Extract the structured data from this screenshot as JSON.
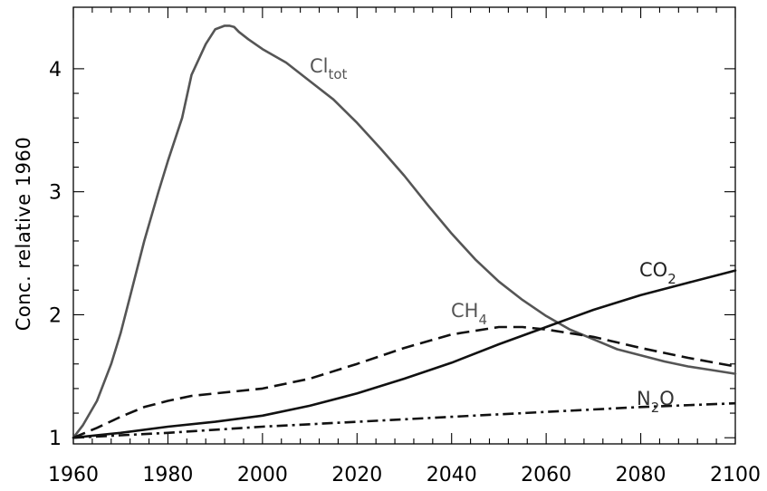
{
  "chart_data": {
    "type": "line",
    "title": "",
    "xlabel": "",
    "ylabel": "Conc. relative 1960",
    "xlim": [
      1960,
      2100
    ],
    "ylim": [
      0.95,
      4.5
    ],
    "xticks": [
      1960,
      1980,
      2000,
      2020,
      2040,
      2060,
      2080,
      2100
    ],
    "yticks": [
      1,
      2,
      3,
      4
    ],
    "grid": false,
    "legend": "none",
    "series": [
      {
        "name": "Cl",
        "name_sub": "tot",
        "color": "#555555",
        "dash": "solid",
        "x": [
          1960,
          1962,
          1965,
          1968,
          1970,
          1972,
          1975,
          1978,
          1980,
          1983,
          1985,
          1988,
          1990,
          1992,
          1993,
          1994,
          1995,
          1997,
          2000,
          2005,
          2010,
          2015,
          2020,
          2025,
          2030,
          2035,
          2040,
          2045,
          2050,
          2055,
          2060,
          2065,
          2070,
          2075,
          2080,
          2085,
          2090,
          2095,
          2100
        ],
        "y": [
          1.0,
          1.1,
          1.3,
          1.6,
          1.85,
          2.15,
          2.6,
          3.0,
          3.25,
          3.6,
          3.95,
          4.2,
          4.32,
          4.35,
          4.35,
          4.34,
          4.3,
          4.24,
          4.16,
          4.05,
          3.9,
          3.75,
          3.56,
          3.35,
          3.13,
          2.89,
          2.66,
          2.45,
          2.27,
          2.12,
          1.99,
          1.88,
          1.8,
          1.72,
          1.67,
          1.62,
          1.58,
          1.55,
          1.52
        ]
      },
      {
        "name": "CO",
        "name_sub": "2",
        "color": "#111111",
        "dash": "solid",
        "x": [
          1960,
          1970,
          1980,
          1990,
          2000,
          2010,
          2020,
          2030,
          2040,
          2050,
          2060,
          2070,
          2080,
          2090,
          2100
        ],
        "y": [
          1.0,
          1.04,
          1.09,
          1.13,
          1.18,
          1.26,
          1.36,
          1.48,
          1.61,
          1.76,
          1.9,
          2.04,
          2.16,
          2.26,
          2.36
        ]
      },
      {
        "name": "CH",
        "name_sub": "4",
        "color": "#111111",
        "dash": "dashed",
        "x": [
          1960,
          1965,
          1970,
          1975,
          1980,
          1985,
          1990,
          2000,
          2010,
          2020,
          2030,
          2040,
          2045,
          2050,
          2055,
          2060,
          2070,
          2080,
          2090,
          2100
        ],
        "y": [
          1.0,
          1.08,
          1.17,
          1.25,
          1.3,
          1.34,
          1.36,
          1.4,
          1.48,
          1.6,
          1.73,
          1.84,
          1.87,
          1.9,
          1.9,
          1.88,
          1.82,
          1.73,
          1.65,
          1.58
        ]
      },
      {
        "name": "N",
        "name_sub": "2",
        "name_suffix": "O",
        "color": "#111111",
        "dash": "dashdot",
        "x": [
          1960,
          1980,
          2000,
          2020,
          2040,
          2060,
          2080,
          2100
        ],
        "y": [
          1.0,
          1.04,
          1.09,
          1.13,
          1.17,
          1.21,
          1.25,
          1.28
        ]
      }
    ]
  }
}
